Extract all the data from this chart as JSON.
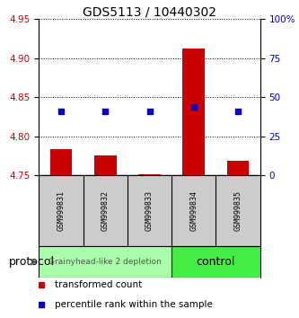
{
  "title": "GDS5113 / 10440302",
  "samples": [
    "GSM999831",
    "GSM999832",
    "GSM999833",
    "GSM999834",
    "GSM999835"
  ],
  "bar_values": [
    4.783,
    4.775,
    4.751,
    4.912,
    4.768
  ],
  "bar_base": 4.75,
  "dot_values": [
    4.832,
    4.832,
    4.832,
    4.838,
    4.832
  ],
  "ylim": [
    4.75,
    4.95
  ],
  "yticks_left": [
    4.75,
    4.8,
    4.85,
    4.9,
    4.95
  ],
  "yticks_right": [
    0,
    25,
    50,
    75,
    100
  ],
  "bar_color": "#cc0000",
  "dot_color": "#0000cc",
  "group_labels": [
    "Grainyhead-like 2 depletion",
    "control"
  ],
  "group_colors": [
    "#aaffaa",
    "#44ee44"
  ],
  "protocol_label": "protocol",
  "legend_bar_label": "transformed count",
  "legend_dot_label": "percentile rank within the sample",
  "bar_width": 0.5,
  "bg_color": "#ffffff",
  "tick_color_left": "#cc0000",
  "tick_color_right": "#0000cc",
  "sample_box_color": "#cccccc",
  "title_fontsize": 10,
  "ytick_fontsize": 7.5,
  "sample_fontsize": 6,
  "legend_fontsize": 7.5,
  "proto_fontsize": 9,
  "group1_fontsize": 6.5,
  "group2_fontsize": 9
}
